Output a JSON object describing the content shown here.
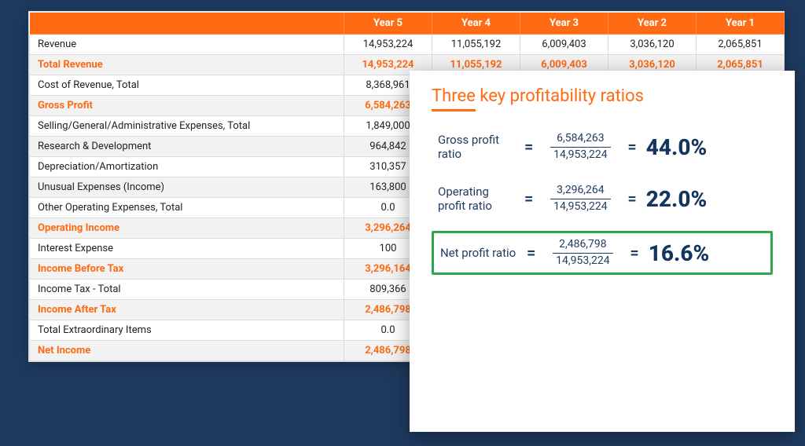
{
  "colors": {
    "accent": "#ff6a13",
    "header_bg": "#ff6a13",
    "header_text": "#ffffff",
    "row_alt_bg": "#f2f2f2",
    "row_bg": "#ffffff",
    "border": "#dcdcdc",
    "text": "#222222",
    "navy": "#1e3a5f",
    "result": "#14365e",
    "highlight_box": "#2ea84f",
    "page_bg": "#1e3a5f"
  },
  "table": {
    "columns": [
      "",
      "Year 5",
      "Year 4",
      "Year 3",
      "Year 2",
      "Year 1"
    ],
    "rows": [
      {
        "label": "Revenue",
        "highlight": false,
        "cells": [
          "14,953,224",
          "11,055,192",
          "6,009,403",
          "3,036,120",
          "2,065,851"
        ]
      },
      {
        "label": "Total Revenue",
        "highlight": true,
        "cells": [
          "14,953,224",
          "11,055,192",
          "6,009,403",
          "3,036,120",
          "2,065,851"
        ]
      },
      {
        "label": "Cost of Revenue, Total",
        "highlight": false,
        "cells": [
          "8,368,961",
          "",
          "",
          "",
          ""
        ]
      },
      {
        "label": "Gross Profit",
        "highlight": true,
        "cells": [
          "6,584,263",
          "",
          "",
          "",
          ""
        ]
      },
      {
        "label": "Selling/General/Administrative Expenses, Total",
        "highlight": false,
        "cells": [
          "1,849,000",
          "",
          "",
          "",
          ""
        ]
      },
      {
        "label": "Research & Development",
        "highlight": false,
        "cells": [
          "964,842",
          "",
          "",
          "",
          ""
        ]
      },
      {
        "label": "Depreciation/Amortization",
        "highlight": false,
        "cells": [
          "310,357",
          "",
          "",
          "",
          ""
        ]
      },
      {
        "label": "Unusual Expenses (Income)",
        "highlight": false,
        "cells": [
          "163,800",
          "",
          "",
          "",
          ""
        ]
      },
      {
        "label": "Other Operating Expenses, Total",
        "highlight": false,
        "cells": [
          "0.0",
          "",
          "",
          "",
          ""
        ]
      },
      {
        "label": "Operating Income",
        "highlight": true,
        "cells": [
          "3,296,264",
          "",
          "",
          "",
          ""
        ]
      },
      {
        "label": "Interest Expense",
        "highlight": false,
        "cells": [
          "100",
          "",
          "",
          "",
          ""
        ]
      },
      {
        "label": "Income Before Tax",
        "highlight": true,
        "cells": [
          "3,296,164",
          "",
          "",
          "",
          ""
        ]
      },
      {
        "label": "Income Tax - Total",
        "highlight": false,
        "cells": [
          "809,366",
          "",
          "",
          "",
          ""
        ]
      },
      {
        "label": "Income After Tax",
        "highlight": true,
        "cells": [
          "2,486,798",
          "",
          "",
          "",
          ""
        ]
      },
      {
        "label": "Total Extraordinary Items",
        "highlight": false,
        "cells": [
          "0.0",
          "",
          "",
          "",
          ""
        ]
      },
      {
        "label": "Net Income",
        "highlight": true,
        "cells": [
          "2,486,798",
          "",
          "",
          "",
          ""
        ]
      }
    ]
  },
  "ratios": {
    "title": "Three key profitability ratios",
    "items": [
      {
        "name": "Gross profit ratio",
        "numerator": "6,584,263",
        "denominator": "14,953,224",
        "result": "44.0%",
        "boxed": false
      },
      {
        "name": "Operating profit ratio",
        "numerator": "3,296,264",
        "denominator": "14,953,224",
        "result": "22.0%",
        "boxed": false
      },
      {
        "name": "Net profit ratio",
        "numerator": "2,486,798",
        "denominator": "14,953,224",
        "result": "16.6%",
        "boxed": true
      }
    ],
    "eq_symbol": "="
  }
}
